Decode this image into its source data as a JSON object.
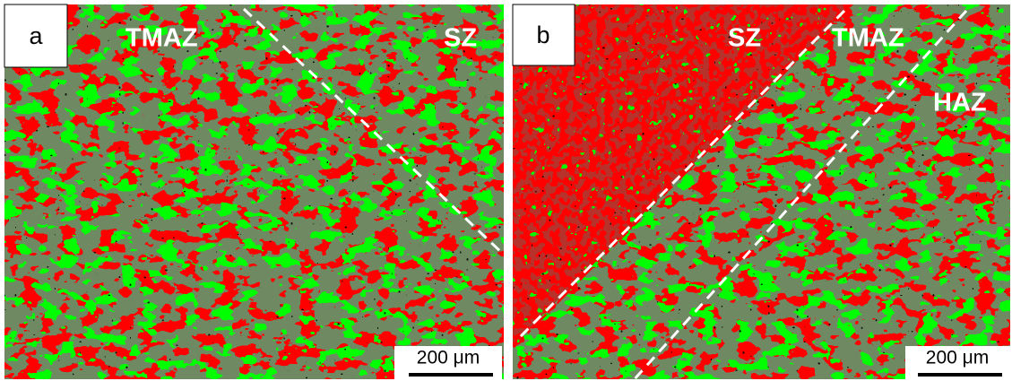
{
  "panels": [
    {
      "label": "a",
      "zones": [
        "TMAZ",
        "SZ"
      ],
      "scale_bar": "200 μm"
    },
    {
      "label": "b",
      "zones": [
        "SZ",
        "TMAZ",
        "HAZ"
      ],
      "scale_bar": "200 μm"
    }
  ]
}
